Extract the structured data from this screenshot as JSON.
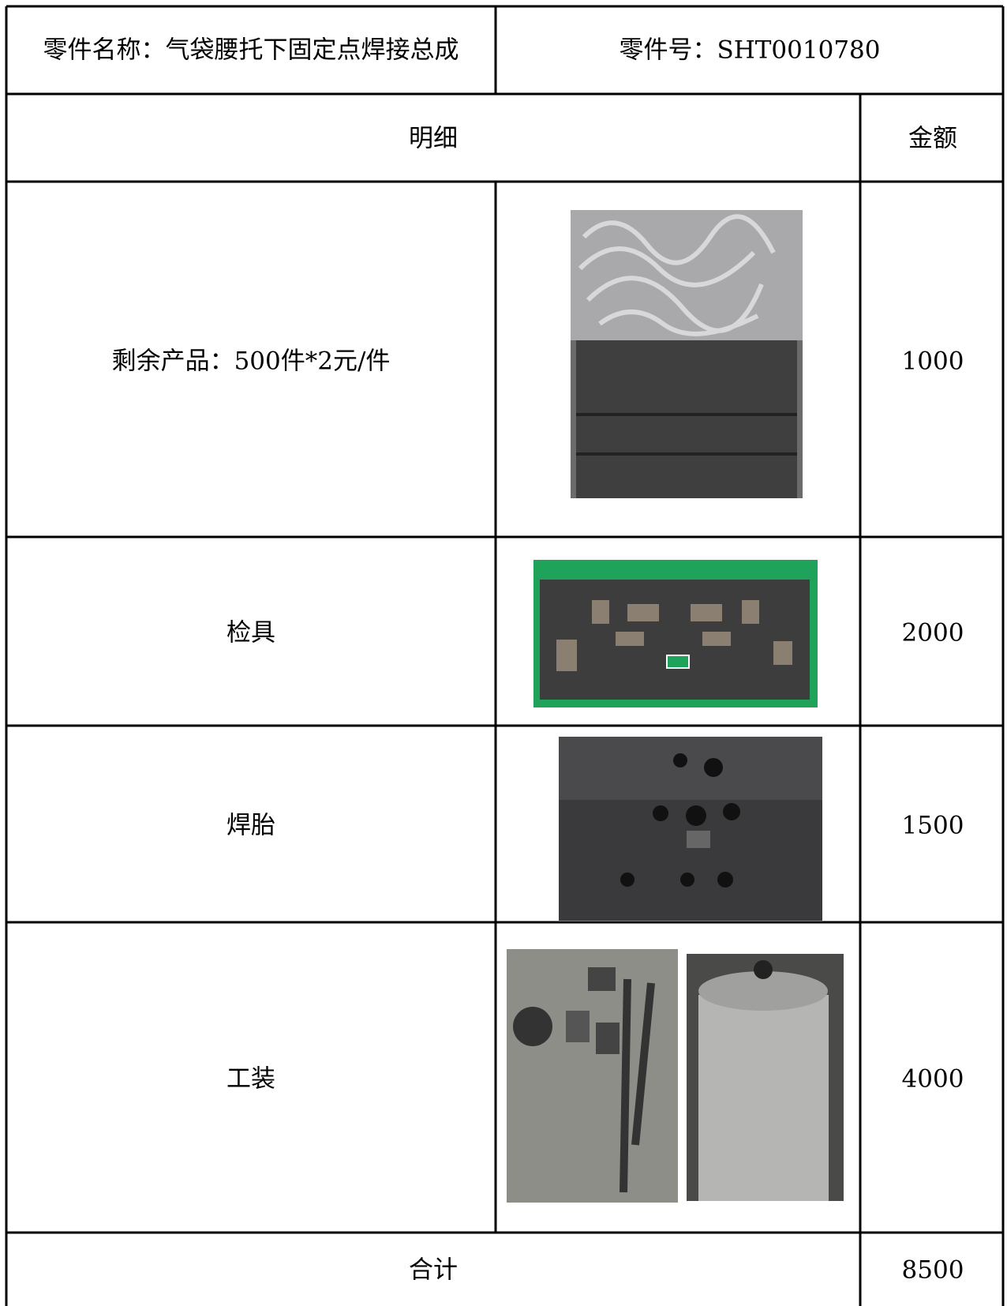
{
  "header": {
    "part_name": "零件名称：气袋腰托下固定点焊接总成",
    "part_number": "零件号：SHT0010780"
  },
  "table": {
    "headers": [
      "明细",
      "金额"
    ],
    "rows": [
      {
        "item": "剩余产品：500件*2元/件",
        "amount": 1000
      },
      {
        "item": "检具",
        "amount": 2000
      },
      {
        "item": "焊胎",
        "amount": 1500
      },
      {
        "item": "工装",
        "amount": 4000
      }
    ],
    "total": {
      "label": "合计",
      "amount": 8500
    }
  }
}
